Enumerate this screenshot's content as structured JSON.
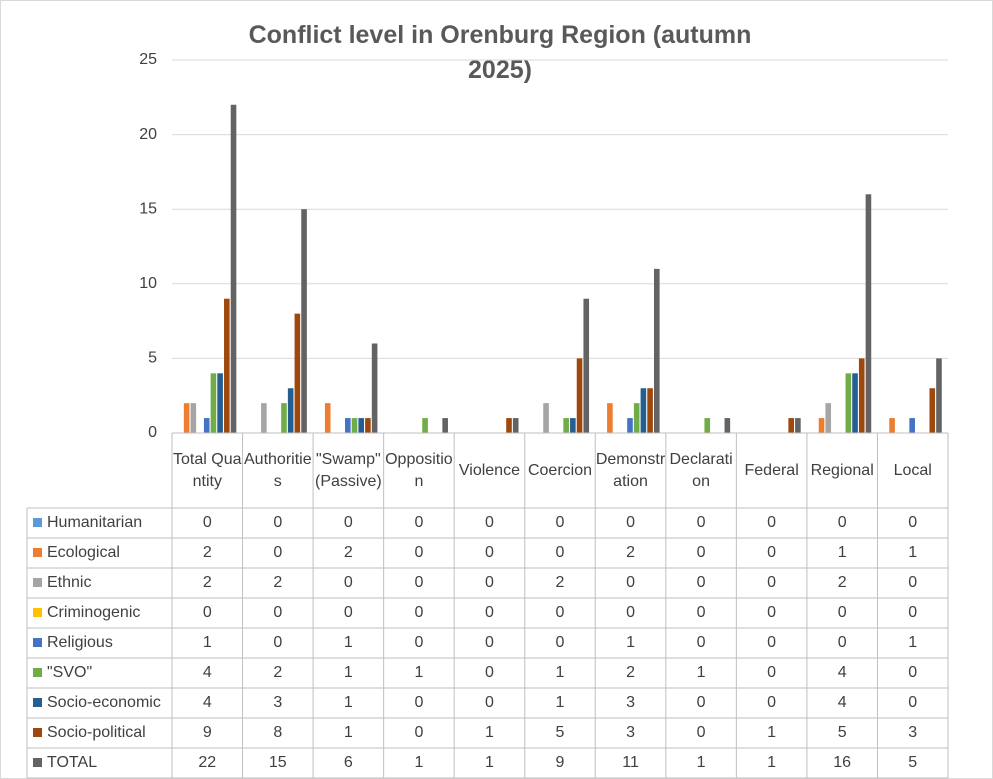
{
  "chart_data": {
    "type": "bar",
    "title": "Conflict level in Orenburg Region (autumn 2025)",
    "categories": [
      "Total Quantity",
      "Authorities",
      "\"Swamp\" (Passive)",
      "Opposition",
      "Violence",
      "Coercion",
      "Demonstration",
      "Declaration",
      "Federal",
      "Regional",
      "Local"
    ],
    "series": [
      {
        "name": "Humanitarian",
        "color": "#5b9bd5",
        "values": [
          0,
          0,
          0,
          0,
          0,
          0,
          0,
          0,
          0,
          0,
          0
        ]
      },
      {
        "name": "Ecological",
        "color": "#ed7d31",
        "values": [
          2,
          0,
          2,
          0,
          0,
          0,
          2,
          0,
          0,
          1,
          1
        ]
      },
      {
        "name": "Ethnic",
        "color": "#a5a5a5",
        "values": [
          2,
          2,
          0,
          0,
          0,
          2,
          0,
          0,
          0,
          2,
          0
        ]
      },
      {
        "name": "Criminogenic",
        "color": "#ffc000",
        "values": [
          0,
          0,
          0,
          0,
          0,
          0,
          0,
          0,
          0,
          0,
          0
        ]
      },
      {
        "name": "Religious",
        "color": "#4472c4",
        "values": [
          1,
          0,
          1,
          0,
          0,
          0,
          1,
          0,
          0,
          0,
          1
        ]
      },
      {
        "name": "\"SVO\"",
        "color": "#70ad47",
        "values": [
          4,
          2,
          1,
          1,
          0,
          1,
          2,
          1,
          0,
          4,
          0
        ]
      },
      {
        "name": "Socio-economic",
        "color": "#255e91",
        "values": [
          4,
          3,
          1,
          0,
          0,
          1,
          3,
          0,
          0,
          4,
          0
        ]
      },
      {
        "name": "Socio-political",
        "color": "#9e480e",
        "values": [
          9,
          8,
          1,
          0,
          1,
          5,
          3,
          0,
          1,
          5,
          3
        ]
      },
      {
        "name": "TOTAL",
        "color": "#636363",
        "values": [
          22,
          15,
          6,
          1,
          1,
          9,
          11,
          1,
          1,
          16,
          5
        ]
      }
    ],
    "ylim": [
      0,
      25
    ],
    "yticks": [
      0,
      5,
      10,
      15,
      20,
      25
    ],
    "grid": true,
    "data_table": true
  }
}
